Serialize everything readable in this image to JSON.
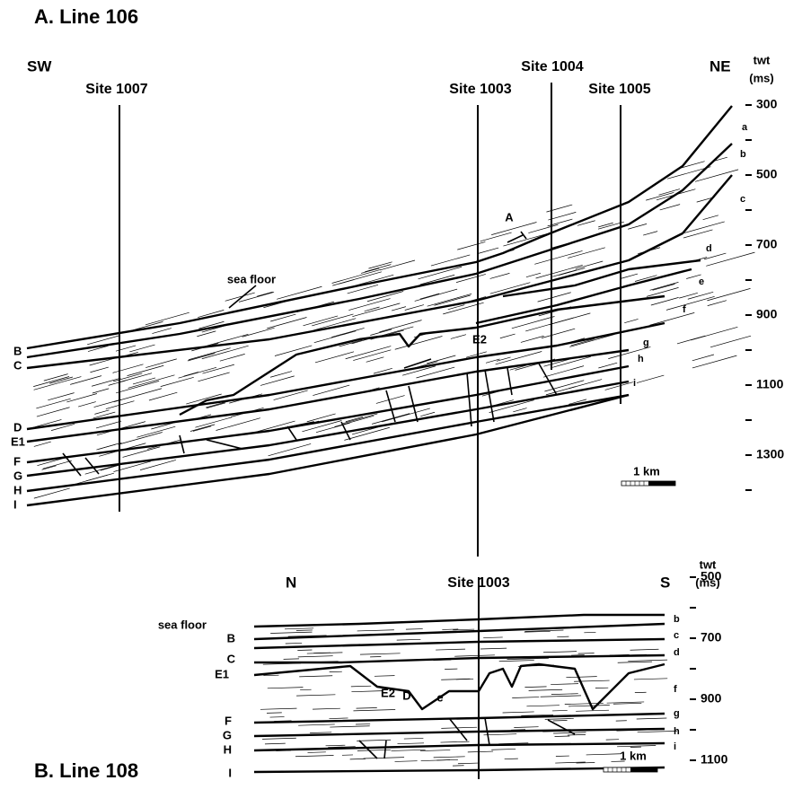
{
  "panels": [
    {
      "title": "A. Line 106",
      "left_end": "SW",
      "right_end": "NE",
      "axis": {
        "title": "twt",
        "unit": "(ms)",
        "ticks": [
          300,
          500,
          700,
          900,
          1100,
          1300
        ]
      },
      "sites": [
        "Site 1007",
        "Site 1003",
        "Site 1004",
        "Site 1005"
      ],
      "horizons_left": [
        "B",
        "C",
        "D",
        "E1",
        "F",
        "G",
        "H",
        "I"
      ],
      "horizons_right": [
        "a",
        "b",
        "c",
        "d",
        "e",
        "f",
        "g",
        "h",
        "i"
      ],
      "annotations": [
        "A",
        "sea floor",
        "E2"
      ],
      "scale_bar": "1 km"
    },
    {
      "title": "B. Line 108",
      "left_end": "N",
      "right_end": "S",
      "axis": {
        "title": "twt",
        "unit": "(ms)",
        "ticks": [
          500,
          700,
          900,
          1100
        ]
      },
      "sites": [
        "Site 1003"
      ],
      "horizons_left": [
        "sea floor",
        "B",
        "C",
        "E1",
        "F",
        "G",
        "H",
        "I"
      ],
      "horizons_right": [
        "b",
        "c",
        "d",
        "f",
        "g",
        "h",
        "i"
      ],
      "annotations": [
        "D",
        "e",
        "E2"
      ],
      "scale_bar": "1 km"
    }
  ]
}
